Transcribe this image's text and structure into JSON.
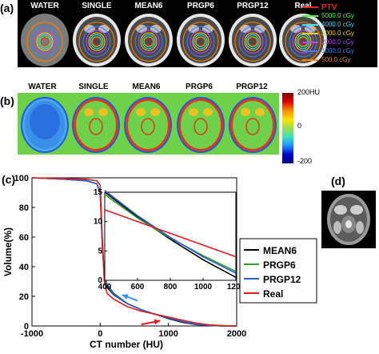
{
  "panel_a": {
    "label": "(a)",
    "columns": [
      "WATER",
      "SINGLE",
      "MEAN6",
      "PRGP6",
      "PRGP12",
      "Real"
    ],
    "legend": [
      {
        "text": "PTV",
        "color": "#ff2020"
      },
      {
        "text": "5000.0 cGy",
        "color": "#40ff40"
      },
      {
        "text": "4000.0 cGy",
        "color": "#40e0ff"
      },
      {
        "text": "3000.0 cGy",
        "color": "#ffd000"
      },
      {
        "text": "2000.0 cGy",
        "color": "#c040ff"
      },
      {
        "text": "1000.0 cGy",
        "color": "#4080ff"
      },
      {
        "text": "500.0 cGy",
        "color": "#ff8000"
      }
    ]
  },
  "panel_b": {
    "label": "(b)",
    "columns": [
      "WATER",
      "SINGLE",
      "MEAN6",
      "PRGP6",
      "PRGP12"
    ],
    "colorbar": {
      "max": "200HU",
      "mid": "0",
      "min": "-200"
    }
  },
  "panel_c": {
    "label": "(c)",
    "legend": [
      "MEAN6",
      "PRGP6",
      "PRGP12",
      "Real"
    ]
  },
  "panel_d": {
    "label": "(d)"
  },
  "chart_data": {
    "type": "line",
    "xlabel": "CT number (HU)",
    "ylabel": "Volume(%)",
    "xlim": [
      -1000,
      2000
    ],
    "ylim": [
      0,
      100
    ],
    "xticks": [
      -1000,
      0,
      1000,
      2000
    ],
    "yticks": [
      0,
      20,
      40,
      60,
      80,
      100
    ],
    "series": [
      {
        "name": "MEAN6",
        "color": "#000000",
        "x": [
          -1000,
          -500,
          -200,
          -50,
          0,
          30,
          60,
          100,
          200,
          400,
          600,
          800,
          1000,
          1200,
          1400,
          1600,
          1800,
          2000
        ],
        "y": [
          100,
          99,
          98,
          96,
          90,
          55,
          33,
          26,
          21,
          15,
          11,
          8,
          5,
          2.5,
          1,
          0.3,
          0,
          0
        ]
      },
      {
        "name": "PRGP6",
        "color": "#2ca02c",
        "x": [
          -1000,
          -500,
          -200,
          -50,
          0,
          30,
          60,
          100,
          200,
          400,
          600,
          800,
          1000,
          1200,
          1400,
          1600,
          1800,
          2000
        ],
        "y": [
          100,
          99,
          98,
          96,
          90,
          56,
          34,
          27,
          21.5,
          15,
          11,
          8,
          5.5,
          3,
          1.2,
          0.4,
          0,
          0
        ]
      },
      {
        "name": "PRGP12",
        "color": "#2b5bd7",
        "x": [
          -1000,
          -500,
          -200,
          -50,
          0,
          30,
          60,
          100,
          200,
          400,
          600,
          800,
          1000,
          1200,
          1400,
          1600,
          1800,
          2000
        ],
        "y": [
          100,
          99,
          98,
          96,
          90,
          57,
          35,
          28,
          22,
          15,
          11,
          8,
          5.5,
          3,
          1.2,
          0.4,
          0,
          0
        ]
      },
      {
        "name": "Real",
        "color": "#e41a1c",
        "x": [
          -1000,
          -500,
          -200,
          -50,
          0,
          30,
          60,
          100,
          200,
          400,
          600,
          800,
          1000,
          1200,
          1400,
          1600,
          1800,
          2000
        ],
        "y": [
          100,
          99.5,
          99,
          98,
          95,
          60,
          30,
          22,
          18,
          13,
          10,
          8,
          6,
          4,
          2,
          0.8,
          0.2,
          0
        ]
      }
    ],
    "inset": {
      "xlim": [
        400,
        1200
      ],
      "ylim": [
        0,
        15
      ],
      "xticks": [
        400,
        600,
        800,
        1000,
        1200
      ],
      "yticks": [
        0,
        5,
        10,
        15
      ],
      "series": [
        {
          "name": "MEAN6",
          "color": "#000000",
          "x": [
            400,
            600,
            800,
            1000,
            1200
          ],
          "y": [
            15,
            10.8,
            7.0,
            3.5,
            0.5
          ]
        },
        {
          "name": "PRGP6",
          "color": "#2ca02c",
          "x": [
            400,
            600,
            800,
            1000,
            1200
          ],
          "y": [
            14.6,
            10.6,
            7.2,
            4.2,
            1.5
          ]
        },
        {
          "name": "PRGP12",
          "color": "#2b5bd7",
          "x": [
            400,
            600,
            800,
            1000,
            1200
          ],
          "y": [
            15.3,
            11.0,
            7.3,
            4.0,
            1.2
          ]
        },
        {
          "name": "Real",
          "color": "#e41a1c",
          "x": [
            400,
            600,
            800,
            1000,
            1200
          ],
          "y": [
            12.0,
            10.0,
            8.0,
            6.0,
            4.0
          ]
        }
      ]
    }
  }
}
